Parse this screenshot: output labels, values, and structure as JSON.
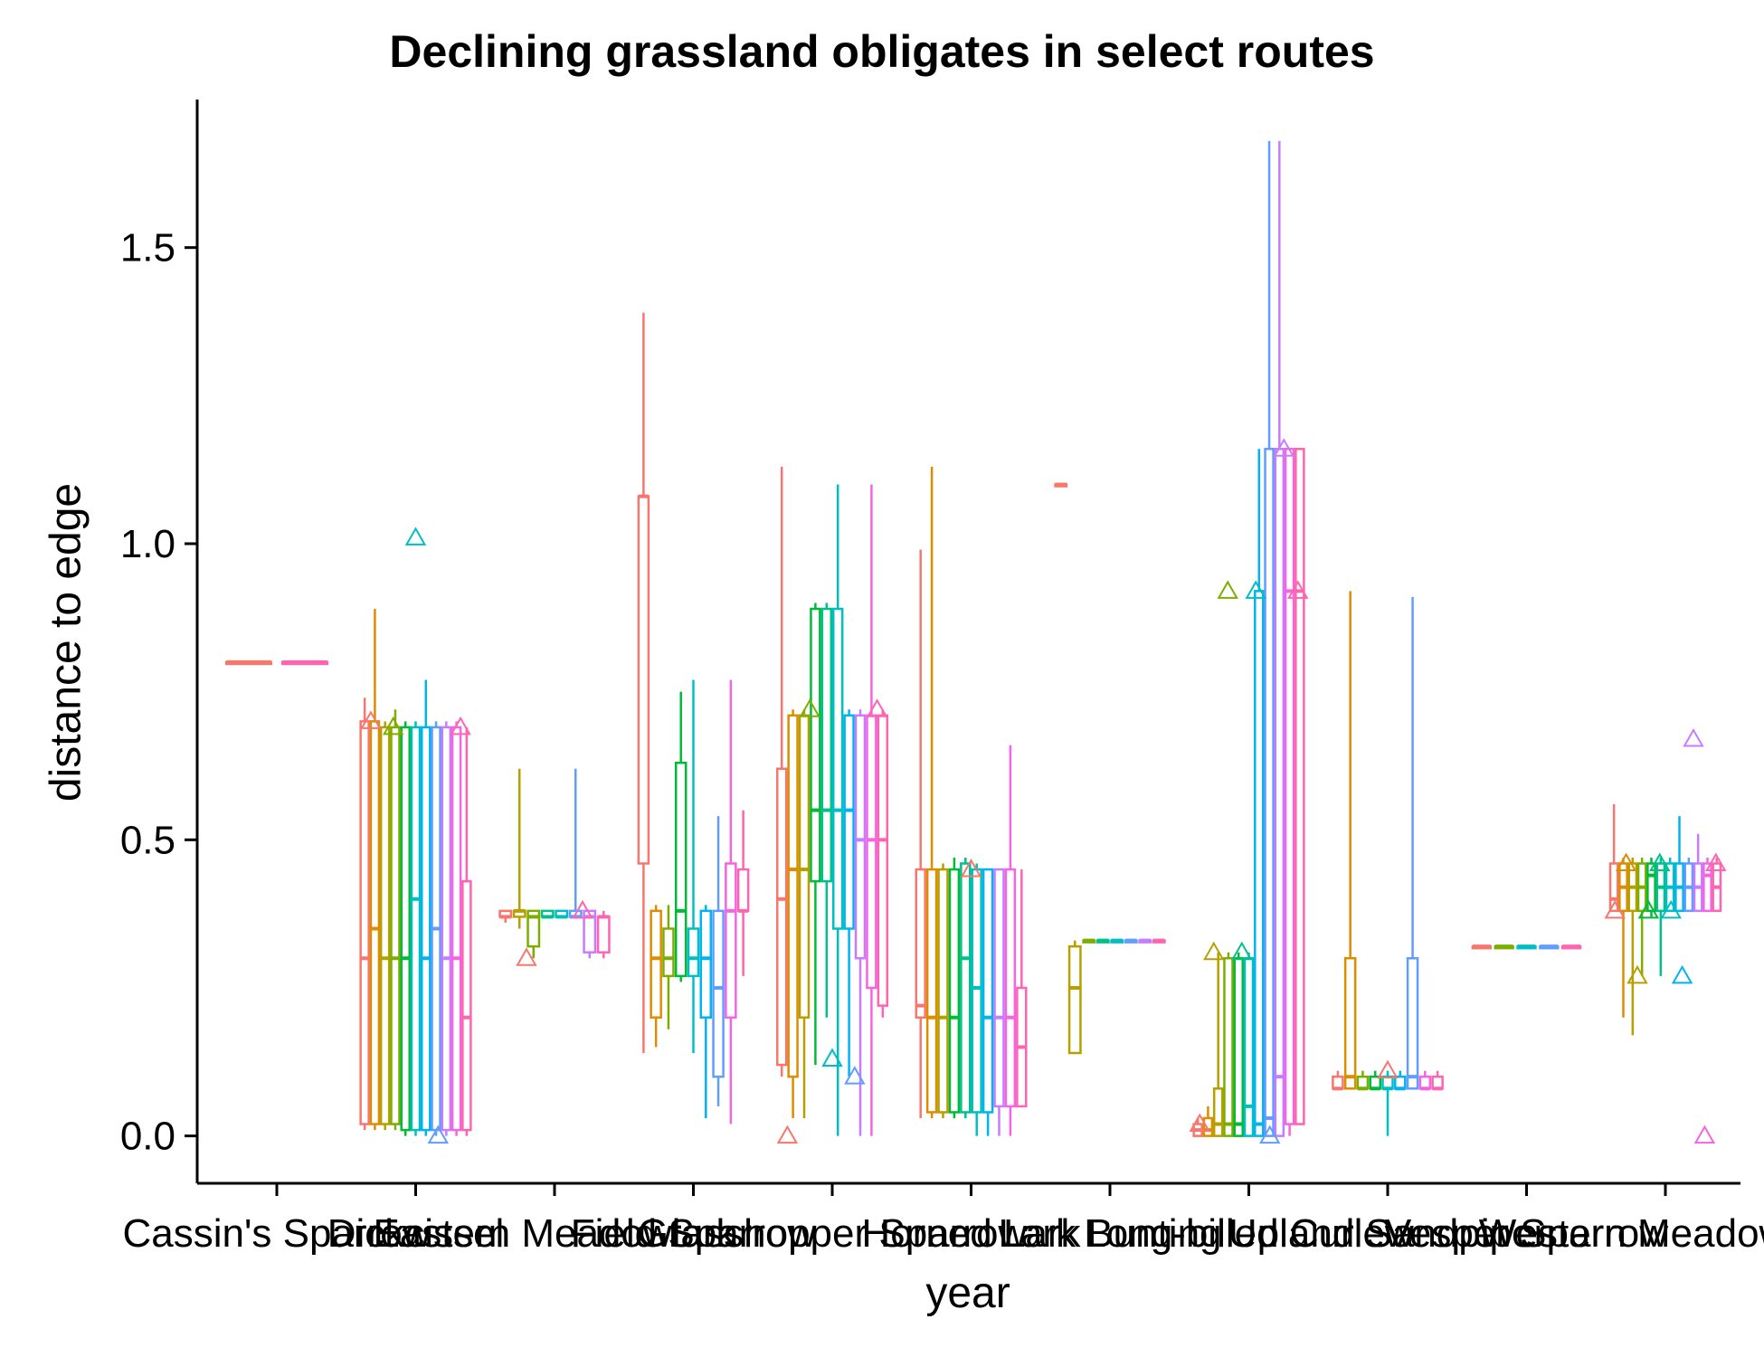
{
  "chart_data": {
    "type": "box",
    "title": "Declining grassland obligates in select routes",
    "xlabel": "year",
    "ylabel": "distance to edge",
    "ylim": [
      -0.08,
      1.75
    ],
    "yticks": [
      0.0,
      0.5,
      1.0,
      1.5
    ],
    "ytick_labels": [
      "0.0",
      "0.5",
      "1.0",
      "1.5"
    ],
    "grid": false,
    "legend": "none",
    "categories": [
      "Cassin's Sparrow",
      "Dickcissel",
      "Eastern Meadowlark",
      "Field Sparrow",
      "Grasshopper Sparrow",
      "Horned Lark",
      "Lark Bunting",
      "Long-billed Curlew",
      "Upland Sandpiper",
      "Vesper Sparrow",
      "Western Meadowlark"
    ],
    "series_colors": [
      "#F8766D",
      "#DE8C00",
      "#B79F00",
      "#7CAE00",
      "#00BA38",
      "#00C08B",
      "#00BFC4",
      "#00B4F0",
      "#619CFF",
      "#C77CFF",
      "#F564E3",
      "#FF64B0"
    ],
    "groups": [
      {
        "category": "Cassin's Sparrow",
        "boxes": [
          {
            "q1": 0.8,
            "median": 0.8,
            "q3": 0.8,
            "min": 0.8,
            "max": 0.8
          },
          {
            "q1": 0.8,
            "median": 0.8,
            "q3": 0.8,
            "min": 0.8,
            "max": 0.8
          }
        ],
        "outliers": []
      },
      {
        "category": "Dickcissel",
        "boxes": [
          {
            "q1": 0.02,
            "median": 0.3,
            "q3": 0.7,
            "min": 0.01,
            "max": 0.74
          },
          {
            "q1": 0.02,
            "median": 0.35,
            "q3": 0.7,
            "min": 0.01,
            "max": 0.89
          },
          {
            "q1": 0.02,
            "median": 0.3,
            "q3": 0.69,
            "min": 0.01,
            "max": 0.7
          },
          {
            "q1": 0.02,
            "median": 0.3,
            "q3": 0.69,
            "min": 0.01,
            "max": 0.72
          },
          {
            "q1": 0.01,
            "median": 0.3,
            "q3": 0.69,
            "min": 0.0,
            "max": 0.7
          },
          {
            "q1": 0.01,
            "median": 0.4,
            "q3": 0.69,
            "min": 0.0,
            "max": 0.7
          },
          {
            "q1": 0.01,
            "median": 0.3,
            "q3": 0.69,
            "min": 0.0,
            "max": 0.77
          },
          {
            "q1": 0.01,
            "median": 0.35,
            "q3": 0.69,
            "min": 0.0,
            "max": 0.7
          },
          {
            "q1": 0.01,
            "median": 0.3,
            "q3": 0.69,
            "min": 0.0,
            "max": 0.7
          },
          {
            "q1": 0.01,
            "median": 0.3,
            "q3": 0.69,
            "min": 0.0,
            "max": 0.7
          },
          {
            "q1": 0.01,
            "median": 0.2,
            "q3": 0.43,
            "min": 0.0,
            "max": 0.69
          }
        ],
        "outliers": [
          0.7,
          0.69,
          1.01,
          0.0,
          0.69
        ]
      },
      {
        "category": "Eastern Meadowlark",
        "boxes": [
          {
            "q1": 0.37,
            "median": 0.37,
            "q3": 0.38,
            "min": 0.36,
            "max": 0.38
          },
          {
            "q1": 0.37,
            "median": 0.38,
            "q3": 0.38,
            "min": 0.35,
            "max": 0.62
          },
          {
            "q1": 0.32,
            "median": 0.37,
            "q3": 0.38,
            "min": 0.3,
            "max": 0.38
          },
          {
            "q1": 0.37,
            "median": 0.37,
            "q3": 0.38,
            "min": 0.37,
            "max": 0.38
          },
          {
            "q1": 0.37,
            "median": 0.37,
            "q3": 0.38,
            "min": 0.37,
            "max": 0.38
          },
          {
            "q1": 0.37,
            "median": 0.37,
            "q3": 0.38,
            "min": 0.37,
            "max": 0.62
          },
          {
            "q1": 0.31,
            "median": 0.37,
            "q3": 0.38,
            "min": 0.3,
            "max": 0.38
          },
          {
            "q1": 0.31,
            "median": 0.37,
            "q3": 0.37,
            "min": 0.3,
            "max": 0.38
          }
        ],
        "outliers": [
          0.3,
          0.38
        ]
      },
      {
        "category": "Field Sparrow",
        "boxes": [
          {
            "q1": 0.46,
            "median": 1.08,
            "q3": 1.08,
            "min": 0.14,
            "max": 1.39
          },
          {
            "q1": 0.2,
            "median": 0.3,
            "q3": 0.38,
            "min": 0.15,
            "max": 0.39
          },
          {
            "q1": 0.27,
            "median": 0.3,
            "q3": 0.35,
            "min": 0.18,
            "max": 0.39
          },
          {
            "q1": 0.27,
            "median": 0.38,
            "q3": 0.63,
            "min": 0.26,
            "max": 0.75
          },
          {
            "q1": 0.27,
            "median": 0.3,
            "q3": 0.35,
            "min": 0.14,
            "max": 0.77
          },
          {
            "q1": 0.2,
            "median": 0.3,
            "q3": 0.38,
            "min": 0.03,
            "max": 0.39
          },
          {
            "q1": 0.1,
            "median": 0.25,
            "q3": 0.38,
            "min": 0.05,
            "max": 0.54
          },
          {
            "q1": 0.2,
            "median": 0.38,
            "q3": 0.46,
            "min": 0.02,
            "max": 0.77
          },
          {
            "q1": 0.38,
            "median": 0.38,
            "q3": 0.45,
            "min": 0.27,
            "max": 0.55
          }
        ],
        "outliers": []
      },
      {
        "category": "Grasshopper Sparrow",
        "boxes": [
          {
            "q1": 0.12,
            "median": 0.4,
            "q3": 0.62,
            "min": 0.1,
            "max": 1.13
          },
          {
            "q1": 0.1,
            "median": 0.45,
            "q3": 0.71,
            "min": 0.03,
            "max": 0.72
          },
          {
            "q1": 0.2,
            "median": 0.45,
            "q3": 0.71,
            "min": 0.03,
            "max": 0.72
          },
          {
            "q1": 0.43,
            "median": 0.55,
            "q3": 0.89,
            "min": 0.12,
            "max": 0.9
          },
          {
            "q1": 0.43,
            "median": 0.55,
            "q3": 0.89,
            "min": 0.2,
            "max": 0.9
          },
          {
            "q1": 0.35,
            "median": 0.55,
            "q3": 0.89,
            "min": 0.0,
            "max": 1.1
          },
          {
            "q1": 0.35,
            "median": 0.55,
            "q3": 0.71,
            "min": 0.1,
            "max": 0.72
          },
          {
            "q1": 0.3,
            "median": 0.5,
            "q3": 0.71,
            "min": 0.0,
            "max": 0.72
          },
          {
            "q1": 0.25,
            "median": 0.5,
            "q3": 0.71,
            "min": 0.0,
            "max": 1.1
          },
          {
            "q1": 0.22,
            "median": 0.5,
            "q3": 0.71,
            "min": 0.2,
            "max": 0.72
          }
        ],
        "outliers": [
          0.0,
          0.72,
          0.13,
          0.1,
          0.72
        ]
      },
      {
        "category": "Horned Lark",
        "boxes": [
          {
            "q1": 0.2,
            "median": 0.22,
            "q3": 0.45,
            "min": 0.03,
            "max": 0.99
          },
          {
            "q1": 0.04,
            "median": 0.2,
            "q3": 0.45,
            "min": 0.03,
            "max": 1.13
          },
          {
            "q1": 0.04,
            "median": 0.2,
            "q3": 0.45,
            "min": 0.03,
            "max": 0.46
          },
          {
            "q1": 0.04,
            "median": 0.2,
            "q3": 0.45,
            "min": 0.03,
            "max": 0.47
          },
          {
            "q1": 0.04,
            "median": 0.3,
            "q3": 0.46,
            "min": 0.03,
            "max": 0.47
          },
          {
            "q1": 0.04,
            "median": 0.25,
            "q3": 0.45,
            "min": 0.0,
            "max": 0.46
          },
          {
            "q1": 0.04,
            "median": 0.2,
            "q3": 0.45,
            "min": 0.0,
            "max": 0.45
          },
          {
            "q1": 0.05,
            "median": 0.2,
            "q3": 0.45,
            "min": 0.0,
            "max": 0.45
          },
          {
            "q1": 0.05,
            "median": 0.2,
            "q3": 0.45,
            "min": 0.0,
            "max": 0.66
          },
          {
            "q1": 0.05,
            "median": 0.15,
            "q3": 0.25,
            "min": 0.05,
            "max": 0.45
          }
        ],
        "outliers": [
          0.45
        ]
      },
      {
        "category": "Lark Bunting",
        "boxes": [
          {
            "q1": 1.1,
            "median": 1.1,
            "q3": 1.1,
            "min": 1.1,
            "max": 1.1
          },
          {
            "q1": 0.14,
            "median": 0.25,
            "q3": 0.32,
            "min": 0.14,
            "max": 0.33
          },
          {
            "q1": 0.33,
            "median": 0.33,
            "q3": 0.33,
            "min": 0.33,
            "max": 0.33
          },
          {
            "q1": 0.33,
            "median": 0.33,
            "q3": 0.33,
            "min": 0.33,
            "max": 0.33
          },
          {
            "q1": 0.33,
            "median": 0.33,
            "q3": 0.33,
            "min": 0.33,
            "max": 0.33
          },
          {
            "q1": 0.33,
            "median": 0.33,
            "q3": 0.33,
            "min": 0.33,
            "max": 0.33
          },
          {
            "q1": 0.33,
            "median": 0.33,
            "q3": 0.33,
            "min": 0.33,
            "max": 0.33
          },
          {
            "q1": 0.33,
            "median": 0.33,
            "q3": 0.33,
            "min": 0.33,
            "max": 0.33
          }
        ],
        "outliers": []
      },
      {
        "category": "Long-billed Curlew",
        "boxes": [
          {
            "q1": 0.0,
            "median": 0.01,
            "q3": 0.02,
            "min": 0.0,
            "max": 0.03
          },
          {
            "q1": 0.0,
            "median": 0.01,
            "q3": 0.03,
            "min": 0.0,
            "max": 0.05
          },
          {
            "q1": 0.0,
            "median": 0.02,
            "q3": 0.08,
            "min": 0.0,
            "max": 0.31
          },
          {
            "q1": 0.0,
            "median": 0.02,
            "q3": 0.3,
            "min": 0.0,
            "max": 0.31
          },
          {
            "q1": 0.0,
            "median": 0.02,
            "q3": 0.3,
            "min": 0.0,
            "max": 0.31
          },
          {
            "q1": 0.0,
            "median": 0.05,
            "q3": 0.3,
            "min": 0.0,
            "max": 0.31
          },
          {
            "q1": 0.0,
            "median": 0.02,
            "q3": 0.92,
            "min": 0.0,
            "max": 1.16
          },
          {
            "q1": 0.0,
            "median": 0.03,
            "q3": 1.16,
            "min": 0.0,
            "max": 1.68
          },
          {
            "q1": 0.0,
            "median": 0.1,
            "q3": 1.16,
            "min": 0.0,
            "max": 1.68
          },
          {
            "q1": 0.02,
            "median": 0.92,
            "q3": 1.16,
            "min": 0.0,
            "max": 1.16
          },
          {
            "q1": 0.02,
            "median": 0.92,
            "q3": 1.16,
            "min": 0.02,
            "max": 1.16
          }
        ],
        "outliers": [
          0.02,
          0.31,
          0.92,
          0.31,
          0.92,
          0.0,
          1.16,
          0.92
        ]
      },
      {
        "category": "Upland Sandpiper",
        "boxes": [
          {
            "q1": 0.08,
            "median": 0.08,
            "q3": 0.1,
            "min": 0.08,
            "max": 0.11
          },
          {
            "q1": 0.08,
            "median": 0.1,
            "q3": 0.3,
            "min": 0.08,
            "max": 0.92
          },
          {
            "q1": 0.08,
            "median": 0.08,
            "q3": 0.1,
            "min": 0.08,
            "max": 0.11
          },
          {
            "q1": 0.08,
            "median": 0.08,
            "q3": 0.1,
            "min": 0.08,
            "max": 0.11
          },
          {
            "q1": 0.08,
            "median": 0.08,
            "q3": 0.1,
            "min": 0.0,
            "max": 0.11
          },
          {
            "q1": 0.08,
            "median": 0.08,
            "q3": 0.1,
            "min": 0.08,
            "max": 0.11
          },
          {
            "q1": 0.08,
            "median": 0.1,
            "q3": 0.3,
            "min": 0.08,
            "max": 0.91
          },
          {
            "q1": 0.08,
            "median": 0.08,
            "q3": 0.1,
            "min": 0.08,
            "max": 0.11
          },
          {
            "q1": 0.08,
            "median": 0.08,
            "q3": 0.1,
            "min": 0.08,
            "max": 0.11
          }
        ],
        "outliers": [
          0.11
        ]
      },
      {
        "category": "Vesper Sparrow",
        "boxes": [
          {
            "q1": 0.32,
            "median": 0.32,
            "q3": 0.32,
            "min": 0.32,
            "max": 0.32
          },
          {
            "q1": 0.32,
            "median": 0.32,
            "q3": 0.32,
            "min": 0.32,
            "max": 0.32
          },
          {
            "q1": 0.32,
            "median": 0.32,
            "q3": 0.32,
            "min": 0.32,
            "max": 0.32
          },
          {
            "q1": 0.32,
            "median": 0.32,
            "q3": 0.32,
            "min": 0.32,
            "max": 0.32
          },
          {
            "q1": 0.32,
            "median": 0.32,
            "q3": 0.32,
            "min": 0.32,
            "max": 0.32
          }
        ],
        "outliers": []
      },
      {
        "category": "Western Meadowlark",
        "boxes": [
          {
            "q1": 0.38,
            "median": 0.4,
            "q3": 0.46,
            "min": 0.38,
            "max": 0.56
          },
          {
            "q1": 0.38,
            "median": 0.42,
            "q3": 0.46,
            "min": 0.2,
            "max": 0.47
          },
          {
            "q1": 0.38,
            "median": 0.42,
            "q3": 0.46,
            "min": 0.17,
            "max": 0.47
          },
          {
            "q1": 0.38,
            "median": 0.42,
            "q3": 0.46,
            "min": 0.27,
            "max": 0.47
          },
          {
            "q1": 0.38,
            "median": 0.44,
            "q3": 0.46,
            "min": 0.37,
            "max": 0.47
          },
          {
            "q1": 0.38,
            "median": 0.42,
            "q3": 0.46,
            "min": 0.27,
            "max": 0.47
          },
          {
            "q1": 0.38,
            "median": 0.42,
            "q3": 0.46,
            "min": 0.38,
            "max": 0.47
          },
          {
            "q1": 0.38,
            "median": 0.42,
            "q3": 0.46,
            "min": 0.38,
            "max": 0.54
          },
          {
            "q1": 0.38,
            "median": 0.42,
            "q3": 0.46,
            "min": 0.38,
            "max": 0.47
          },
          {
            "q1": 0.38,
            "median": 0.42,
            "q3": 0.46,
            "min": 0.38,
            "max": 0.51
          },
          {
            "q1": 0.38,
            "median": 0.44,
            "q3": 0.46,
            "min": 0.38,
            "max": 0.47
          },
          {
            "q1": 0.38,
            "median": 0.42,
            "q3": 0.46,
            "min": 0.38,
            "max": 0.47
          }
        ],
        "outliers": [
          0.38,
          0.46,
          0.27,
          0.38,
          0.46,
          0.38,
          0.27,
          0.67,
          0.0,
          0.46
        ]
      }
    ]
  }
}
